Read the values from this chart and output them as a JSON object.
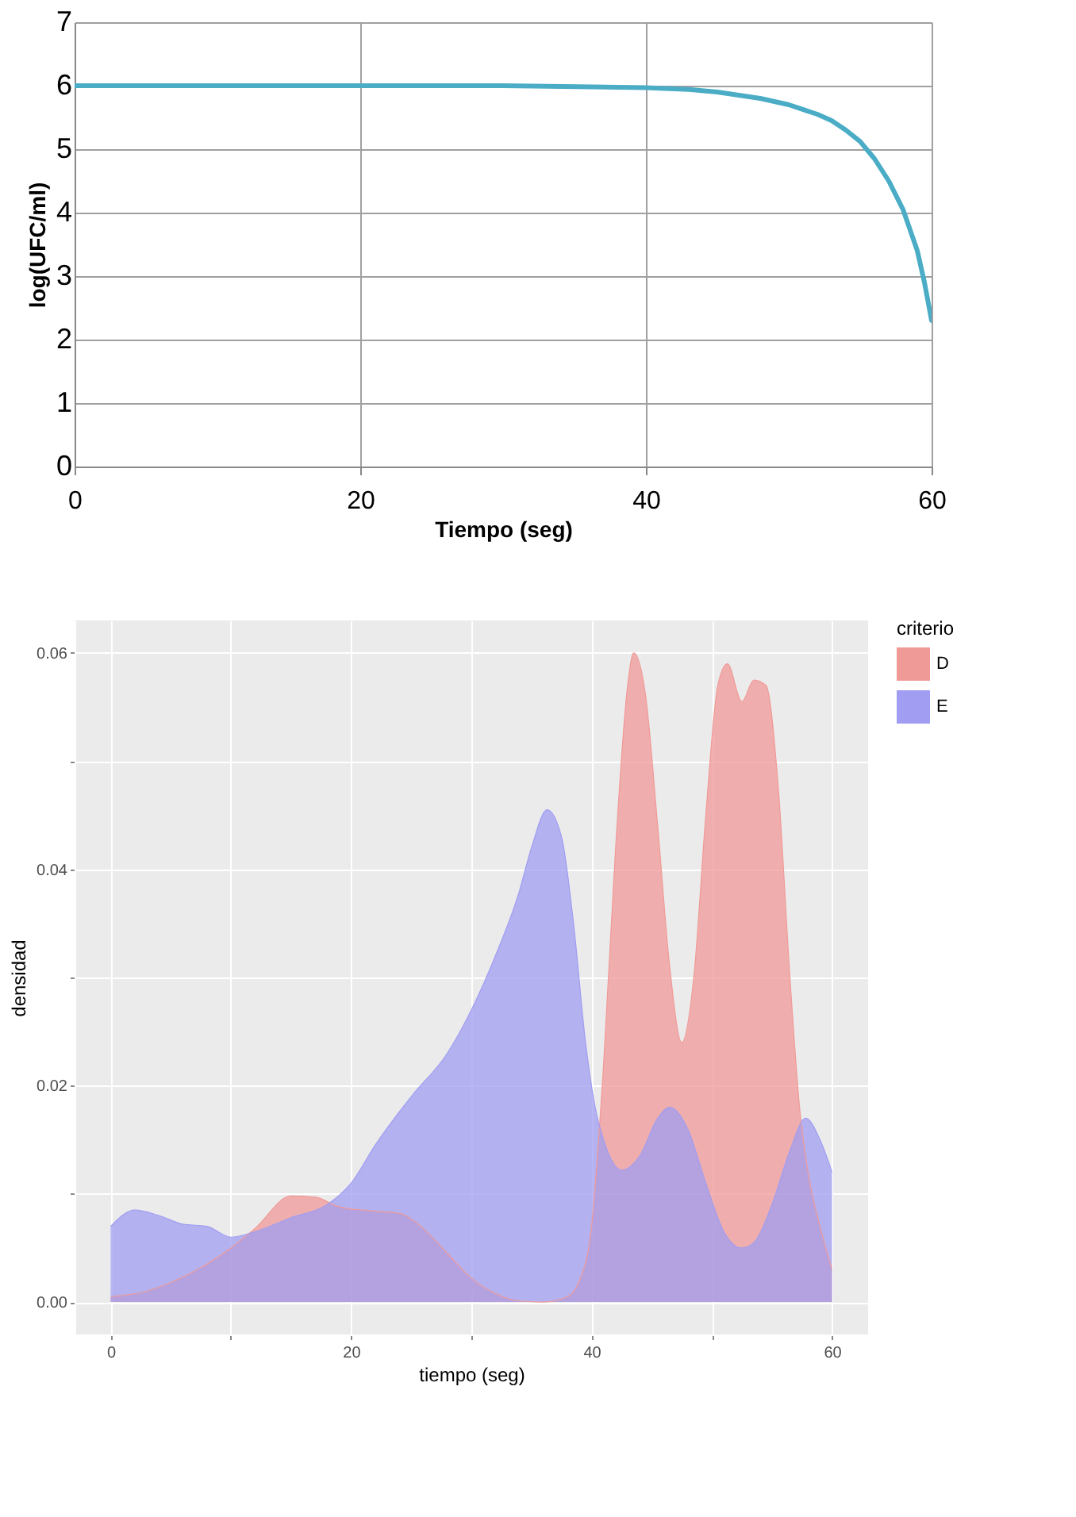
{
  "chart_data": [
    {
      "type": "line",
      "xlabel": "Tiempo (seg)",
      "ylabel": "log(UFC/ml)",
      "xlim": [
        0,
        60
      ],
      "ylim": [
        0,
        7
      ],
      "xticks": [
        0,
        20,
        40,
        60
      ],
      "yticks": [
        0,
        1,
        2,
        3,
        4,
        5,
        6,
        7
      ],
      "grid": true,
      "legend": false,
      "line_style": "solid",
      "marker": "none",
      "series": [
        {
          "color": "#4bacc6",
          "x": [
            0,
            10,
            20,
            30,
            40,
            43,
            45,
            48,
            50,
            52,
            53,
            54,
            55,
            56,
            57,
            58,
            59,
            59.5,
            60
          ],
          "values": [
            6,
            6,
            6,
            6,
            5.97,
            5.94,
            5.9,
            5.8,
            5.7,
            5.55,
            5.45,
            5.3,
            5.12,
            4.85,
            4.5,
            4.05,
            3.4,
            2.9,
            2.3
          ]
        }
      ]
    },
    {
      "type": "area",
      "xlabel": "tiempo (seg)",
      "ylabel": "densidad",
      "legend_title": "criterio",
      "legend": "right",
      "grid": true,
      "xlim": [
        -3,
        63
      ],
      "ylim": [
        -0.003,
        0.063
      ],
      "xticks": [
        0,
        {
          "value": 10,
          "label": null
        },
        20,
        {
          "value": 30,
          "label": null
        },
        40,
        {
          "value": 50,
          "label": null
        },
        60
      ],
      "yticks": [
        {
          "value": 0,
          "label": "0.00"
        },
        {
          "value": 0.01,
          "label": null
        },
        {
          "value": 0.02,
          "label": "0.02"
        },
        {
          "value": 0.03,
          "label": null
        },
        {
          "value": 0.04,
          "label": "0.04"
        },
        {
          "value": 0.05,
          "label": null
        },
        {
          "value": 0.06,
          "label": "0.06"
        }
      ],
      "series": [
        {
          "name": "D",
          "color": "#f09a98",
          "x": [
            0,
            3,
            5,
            8,
            10,
            12,
            15,
            17,
            19,
            22,
            24,
            26,
            28,
            30,
            32,
            34,
            36,
            38,
            39,
            40,
            41,
            42,
            43,
            43.5,
            44.5,
            45.5,
            46.5,
            47.5,
            48.5,
            49.5,
            50.5,
            51.3,
            52.5,
            53.5,
            54.5,
            55.5,
            56.5,
            57.3,
            58,
            59,
            60
          ],
          "values": [
            0.0005,
            0.001,
            0.0018,
            0.0035,
            0.005,
            0.0068,
            0.0098,
            0.0097,
            0.0088,
            0.0084,
            0.0082,
            0.0068,
            0.0045,
            0.0022,
            0.0008,
            0.0001,
            0,
            0.0005,
            0.002,
            0.007,
            0.022,
            0.042,
            0.057,
            0.06,
            0.056,
            0.044,
            0.031,
            0.024,
            0.03,
            0.045,
            0.057,
            0.059,
            0.0555,
            0.0575,
            0.057,
            0.048,
            0.03,
            0.018,
            0.012,
            0.007,
            0.003
          ]
        },
        {
          "name": "E",
          "color": "#a09df2",
          "x": [
            0,
            2,
            4,
            6,
            8,
            10,
            12,
            15,
            18,
            20,
            22,
            25,
            28,
            30,
            32,
            34,
            35,
            36.3,
            37.5,
            38.5,
            39.5,
            40.3,
            41,
            42.5,
            44,
            45.5,
            46.5,
            48,
            49.5,
            51,
            52.5,
            53.5,
            55,
            56.5,
            57.8,
            59,
            60
          ],
          "values": [
            0.007,
            0.0085,
            0.008,
            0.0072,
            0.007,
            0.006,
            0.0065,
            0.0078,
            0.009,
            0.011,
            0.0145,
            0.019,
            0.023,
            0.027,
            0.032,
            0.038,
            0.042,
            0.0455,
            0.043,
            0.035,
            0.024,
            0.018,
            0.015,
            0.0122,
            0.0135,
            0.017,
            0.018,
            0.016,
            0.011,
            0.0065,
            0.005,
            0.0055,
            0.009,
            0.014,
            0.017,
            0.015,
            0.012
          ]
        }
      ]
    }
  ]
}
